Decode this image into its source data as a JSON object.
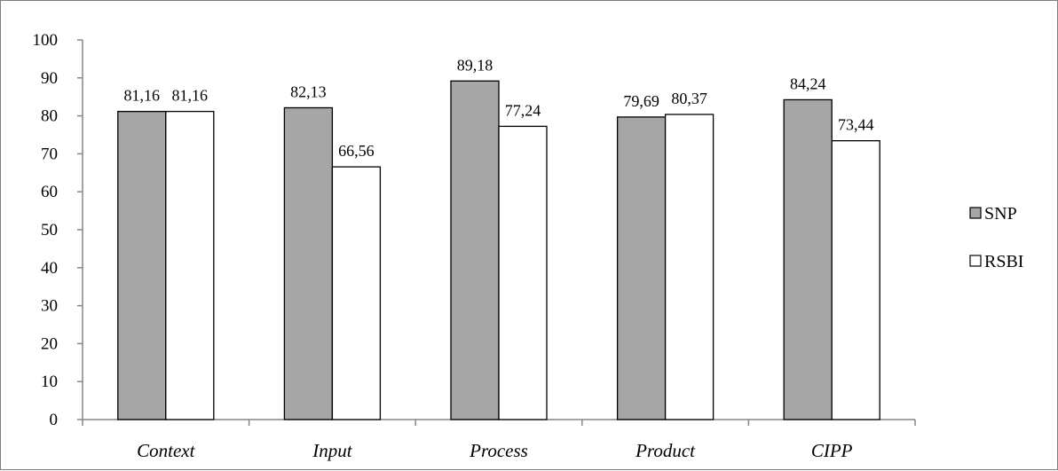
{
  "chart_data": {
    "type": "bar",
    "categories": [
      "Context",
      "Input",
      "Process",
      "Product",
      "CIPP"
    ],
    "series": [
      {
        "name": "SNP",
        "values": [
          81.16,
          82.13,
          89.18,
          79.69,
          84.24
        ],
        "labels": [
          "81,16",
          "82,13",
          "89,18",
          "79,69",
          "84,24"
        ],
        "color": "#a6a6a6"
      },
      {
        "name": "RSBI",
        "values": [
          81.16,
          66.56,
          77.24,
          80.37,
          73.44
        ],
        "labels": [
          "81,16",
          "66,56",
          "77,24",
          "80,37",
          "73,44"
        ],
        "color": "#ffffff"
      }
    ],
    "yticks": [
      "0",
      "10",
      "20",
      "30",
      "40",
      "50",
      "60",
      "70",
      "80",
      "90",
      "100"
    ],
    "ylim": [
      0,
      100
    ],
    "grid": false,
    "legend_position": "right"
  }
}
